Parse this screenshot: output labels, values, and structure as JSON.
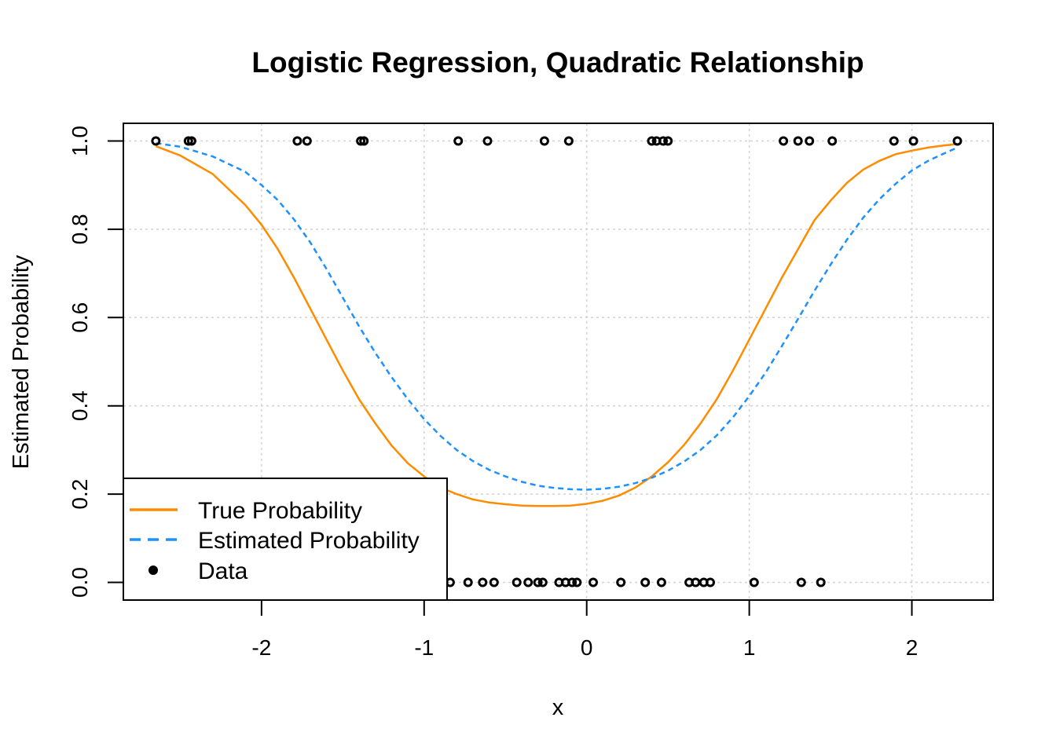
{
  "chart_data": {
    "type": "line",
    "title": "Logistic Regression, Quadratic Relationship",
    "xlabel": "x",
    "ylabel": "Estimated Probability",
    "xlim": [
      -2.85,
      2.5
    ],
    "ylim": [
      -0.04,
      1.04
    ],
    "grid": true,
    "x_ticks": [
      -2,
      -1,
      0,
      1,
      2
    ],
    "x_tick_labels": [
      "-2",
      "-1",
      "0",
      "1",
      "2"
    ],
    "y_ticks": [
      0.0,
      0.2,
      0.4,
      0.6,
      0.8,
      1.0
    ],
    "y_tick_labels": [
      "0.0",
      "0.2",
      "0.4",
      "0.6",
      "0.8",
      "1.0"
    ],
    "colors": {
      "true_probability": "#FF8C00",
      "estimated_probability": "#1E90FF",
      "data": "#000000",
      "grid": "#d3d3d3"
    },
    "legend": {
      "position": "bottom-left",
      "entries": [
        {
          "label": "True Probability",
          "style": "solid-line",
          "color": "#FF8C00"
        },
        {
          "label": "Estimated Probability",
          "style": "dashed-line",
          "color": "#1E90FF"
        },
        {
          "label": "Data",
          "style": "point",
          "color": "#000000"
        }
      ]
    },
    "series": [
      {
        "name": "True Probability",
        "style": "solid",
        "x": [
          -2.65,
          -2.5,
          -2.3,
          -2.1,
          -2.0,
          -1.9,
          -1.8,
          -1.7,
          -1.6,
          -1.5,
          -1.4,
          -1.3,
          -1.2,
          -1.1,
          -1.0,
          -0.9,
          -0.8,
          -0.7,
          -0.6,
          -0.5,
          -0.4,
          -0.3,
          -0.2,
          -0.1,
          0.0,
          0.1,
          0.2,
          0.3,
          0.4,
          0.5,
          0.6,
          0.7,
          0.8,
          0.9,
          1.0,
          1.1,
          1.2,
          1.3,
          1.4,
          1.5,
          1.6,
          1.7,
          1.8,
          1.9,
          2.0,
          2.1,
          2.2,
          2.28
        ],
        "y": [
          0.988,
          0.967,
          0.925,
          0.855,
          0.81,
          0.755,
          0.69,
          0.62,
          0.55,
          0.48,
          0.415,
          0.36,
          0.31,
          0.27,
          0.24,
          0.215,
          0.2,
          0.188,
          0.181,
          0.177,
          0.174,
          0.173,
          0.173,
          0.174,
          0.178,
          0.185,
          0.197,
          0.215,
          0.24,
          0.272,
          0.312,
          0.36,
          0.415,
          0.48,
          0.55,
          0.62,
          0.69,
          0.755,
          0.82,
          0.865,
          0.905,
          0.935,
          0.955,
          0.97,
          0.978,
          0.985,
          0.99,
          0.993
        ]
      },
      {
        "name": "Estimated Probability",
        "style": "dashed",
        "x": [
          -2.65,
          -2.5,
          -2.3,
          -2.1,
          -2.0,
          -1.9,
          -1.8,
          -1.7,
          -1.6,
          -1.5,
          -1.4,
          -1.3,
          -1.2,
          -1.1,
          -1.0,
          -0.9,
          -0.8,
          -0.7,
          -0.6,
          -0.5,
          -0.4,
          -0.3,
          -0.2,
          -0.1,
          0.0,
          0.1,
          0.2,
          0.3,
          0.4,
          0.5,
          0.6,
          0.7,
          0.8,
          0.9,
          1.0,
          1.1,
          1.2,
          1.3,
          1.4,
          1.5,
          1.6,
          1.7,
          1.8,
          1.9,
          2.0,
          2.1,
          2.2,
          2.28
        ],
        "y": [
          0.995,
          0.987,
          0.965,
          0.93,
          0.9,
          0.866,
          0.822,
          0.77,
          0.71,
          0.645,
          0.58,
          0.52,
          0.465,
          0.415,
          0.37,
          0.332,
          0.3,
          0.275,
          0.255,
          0.24,
          0.228,
          0.219,
          0.214,
          0.211,
          0.21,
          0.212,
          0.217,
          0.225,
          0.237,
          0.253,
          0.274,
          0.3,
          0.333,
          0.374,
          0.422,
          0.475,
          0.535,
          0.597,
          0.66,
          0.72,
          0.776,
          0.826,
          0.868,
          0.903,
          0.933,
          0.955,
          0.972,
          0.985
        ]
      },
      {
        "name": "Data",
        "style": "points",
        "x": [
          -2.65,
          -2.45,
          -2.43,
          -1.78,
          -1.72,
          -1.39,
          -1.37,
          -0.79,
          -0.61,
          -0.26,
          -0.11,
          0.4,
          0.43,
          0.47,
          0.5,
          1.21,
          1.3,
          1.37,
          1.51,
          1.89,
          2.01,
          2.28,
          -0.88,
          -0.84,
          -0.73,
          -0.64,
          -0.57,
          -0.43,
          -0.36,
          -0.3,
          -0.27,
          -0.17,
          -0.13,
          -0.09,
          -0.06,
          0.04,
          0.21,
          0.36,
          0.46,
          0.63,
          0.67,
          0.72,
          0.76,
          1.03,
          1.32,
          1.44
        ],
        "y": [
          1,
          1,
          1,
          1,
          1,
          1,
          1,
          1,
          1,
          1,
          1,
          1,
          1,
          1,
          1,
          1,
          1,
          1,
          1,
          1,
          1,
          1,
          0,
          0,
          0,
          0,
          0,
          0,
          0,
          0,
          0,
          0,
          0,
          0,
          0,
          0,
          0,
          0,
          0,
          0,
          0,
          0,
          0,
          0,
          0,
          0
        ]
      }
    ]
  }
}
